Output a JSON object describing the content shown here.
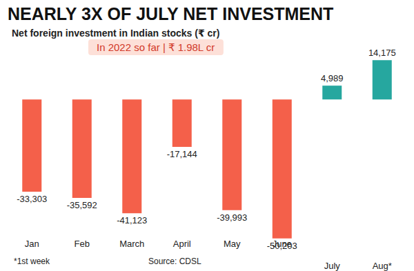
{
  "chart_data": {
    "type": "bar",
    "title": "NEARLY 3X OF JULY NET INVESTMENT",
    "subtitle": "Net foreign investment in Indian stocks (₹ cr)",
    "annotations": [
      "In 2022 so far | ₹ 1.98L cr",
      "*1st week",
      "Source: CDSL"
    ],
    "categories": [
      "Jan",
      "Feb",
      "March",
      "April",
      "May",
      "June",
      "July",
      "Aug*"
    ],
    "values": [
      -33303,
      -35592,
      -41123,
      -17144,
      -39993,
      -50203,
      4989,
      14175
    ],
    "value_labels": [
      "-33,303",
      "-35,592",
      "-41,123",
      "-17,144",
      "-39,993",
      "-50,203",
      "4,989",
      "14,175"
    ],
    "colors": [
      "#f4604a",
      "#f4604a",
      "#f4604a",
      "#f4604a",
      "#f4604a",
      "#f4604a",
      "#26a79f",
      "#26a79f"
    ],
    "ylim": [
      -56000,
      16000
    ],
    "grid": false,
    "data_labels": true,
    "tick_labels": "x"
  }
}
